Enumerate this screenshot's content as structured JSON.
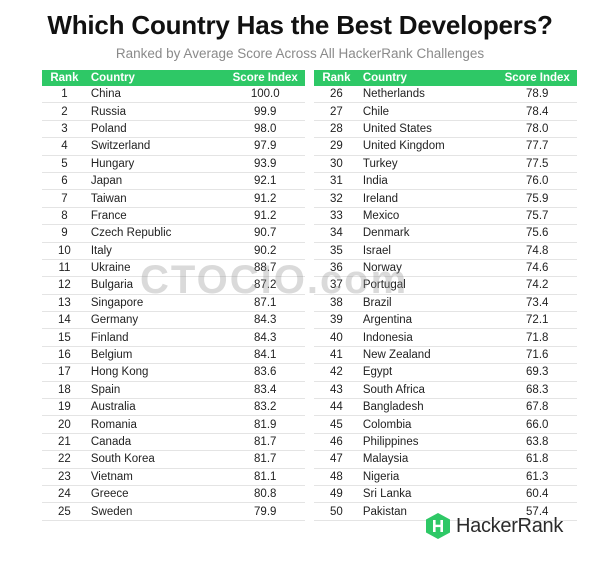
{
  "title": "Which Country Has the Best Developers?",
  "subtitle": "Ranked by Average Score Across All HackerRank Challenges",
  "watermark": "CTOCIO.com",
  "logo_text": "HackerRank",
  "colors": {
    "header": "#2ec866",
    "logo": "#2ec866"
  },
  "chart_data": {
    "type": "table",
    "columns": [
      "Rank",
      "Country",
      "Score Index"
    ],
    "rows": [
      [
        "1",
        "China",
        "100.0"
      ],
      [
        "2",
        "Russia",
        "99.9"
      ],
      [
        "3",
        "Poland",
        "98.0"
      ],
      [
        "4",
        "Switzerland",
        "97.9"
      ],
      [
        "5",
        "Hungary",
        "93.9"
      ],
      [
        "6",
        "Japan",
        "92.1"
      ],
      [
        "7",
        "Taiwan",
        "91.2"
      ],
      [
        "8",
        "France",
        "91.2"
      ],
      [
        "9",
        "Czech Republic",
        "90.7"
      ],
      [
        "10",
        "Italy",
        "90.2"
      ],
      [
        "11",
        "Ukraine",
        "88.7"
      ],
      [
        "12",
        "Bulgaria",
        "87.2"
      ],
      [
        "13",
        "Singapore",
        "87.1"
      ],
      [
        "14",
        "Germany",
        "84.3"
      ],
      [
        "15",
        "Finland",
        "84.3"
      ],
      [
        "16",
        "Belgium",
        "84.1"
      ],
      [
        "17",
        "Hong Kong",
        "83.6"
      ],
      [
        "18",
        "Spain",
        "83.4"
      ],
      [
        "19",
        "Australia",
        "83.2"
      ],
      [
        "20",
        "Romania",
        "81.9"
      ],
      [
        "21",
        "Canada",
        "81.7"
      ],
      [
        "22",
        "South Korea",
        "81.7"
      ],
      [
        "23",
        "Vietnam",
        "81.1"
      ],
      [
        "24",
        "Greece",
        "80.8"
      ],
      [
        "25",
        "Sweden",
        "79.9"
      ],
      [
        "26",
        "Netherlands",
        "78.9"
      ],
      [
        "27",
        "Chile",
        "78.4"
      ],
      [
        "28",
        "United States",
        "78.0"
      ],
      [
        "29",
        "United Kingdom",
        "77.7"
      ],
      [
        "30",
        "Turkey",
        "77.5"
      ],
      [
        "31",
        "India",
        "76.0"
      ],
      [
        "32",
        "Ireland",
        "75.9"
      ],
      [
        "33",
        "Mexico",
        "75.7"
      ],
      [
        "34",
        "Denmark",
        "75.6"
      ],
      [
        "35",
        "Israel",
        "74.8"
      ],
      [
        "36",
        "Norway",
        "74.6"
      ],
      [
        "37",
        "Portugal",
        "74.2"
      ],
      [
        "38",
        "Brazil",
        "73.4"
      ],
      [
        "39",
        "Argentina",
        "72.1"
      ],
      [
        "40",
        "Indonesia",
        "71.8"
      ],
      [
        "41",
        "New Zealand",
        "71.6"
      ],
      [
        "42",
        "Egypt",
        "69.3"
      ],
      [
        "43",
        "South Africa",
        "68.3"
      ],
      [
        "44",
        "Bangladesh",
        "67.8"
      ],
      [
        "45",
        "Colombia",
        "66.0"
      ],
      [
        "46",
        "Philippines",
        "63.8"
      ],
      [
        "47",
        "Malaysia",
        "61.8"
      ],
      [
        "48",
        "Nigeria",
        "61.3"
      ],
      [
        "49",
        "Sri Lanka",
        "60.4"
      ],
      [
        "50",
        "Pakistan",
        "57.4"
      ]
    ]
  }
}
